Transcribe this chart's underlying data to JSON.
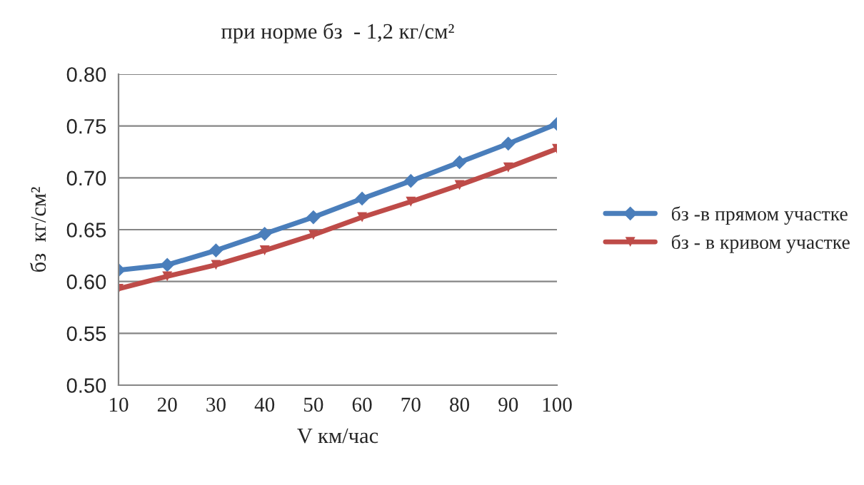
{
  "chart_data": {
    "type": "line",
    "title": "при норме бз  - 1,2 кг/см²",
    "xlabel": "V км/час",
    "ylabel": "бз  кг/см²",
    "x": [
      10,
      20,
      30,
      40,
      50,
      60,
      70,
      80,
      90,
      100
    ],
    "series": [
      {
        "name": "бз -в прямом участке",
        "color": "#4a7ebb",
        "marker": "diamond",
        "values": [
          0.611,
          0.616,
          0.63,
          0.646,
          0.662,
          0.68,
          0.697,
          0.715,
          0.733,
          0.752
        ]
      },
      {
        "name": "бз - в кривом участке",
        "color": "#be4b48",
        "marker": "triangle",
        "values": [
          0.593,
          0.605,
          0.616,
          0.63,
          0.645,
          0.662,
          0.677,
          0.693,
          0.71,
          0.728
        ]
      }
    ],
    "xlim": [
      10,
      100
    ],
    "xticks": [
      10,
      20,
      30,
      40,
      50,
      60,
      70,
      80,
      90,
      100
    ],
    "ylim": [
      0.5,
      0.8
    ],
    "yticks": [
      {
        "value": 0.5,
        "label": "0.50"
      },
      {
        "value": 0.55,
        "label": "0.55"
      },
      {
        "value": 0.6,
        "label": "0.60"
      },
      {
        "value": 0.65,
        "label": "0.65"
      },
      {
        "value": 0.7,
        "label": "0.70"
      },
      {
        "value": 0.75,
        "label": "0.75"
      },
      {
        "value": 0.8,
        "label": "0.80"
      }
    ],
    "grid": "y",
    "legend": "right",
    "line_style": "solid"
  }
}
